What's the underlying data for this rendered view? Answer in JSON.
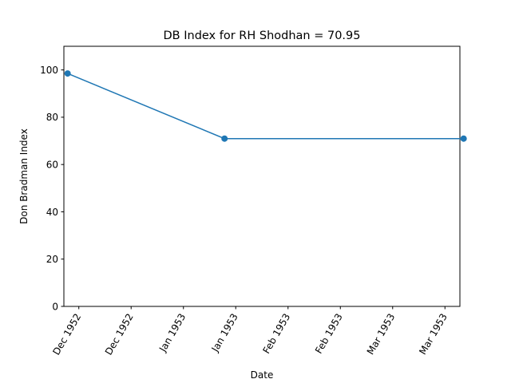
{
  "chart_data": {
    "type": "line",
    "title": "DB Index for RH Shodhan = 70.95",
    "xlabel": "Date",
    "ylabel": "Don Bradman Index",
    "ylim": [
      0,
      110
    ],
    "xlim": [
      "1952-12-11",
      "1953-03-27"
    ],
    "yticks": [
      0,
      20,
      40,
      60,
      80,
      100
    ],
    "xticks": [
      {
        "date": "1952-12-15",
        "label": "Dec 1952"
      },
      {
        "date": "1952-12-29",
        "label": "Dec 1952"
      },
      {
        "date": "1953-01-12",
        "label": "Jan 1953"
      },
      {
        "date": "1953-01-26",
        "label": "Jan 1953"
      },
      {
        "date": "1953-02-09",
        "label": "Feb 1953"
      },
      {
        "date": "1953-02-23",
        "label": "Feb 1953"
      },
      {
        "date": "1953-03-09",
        "label": "Mar 1953"
      },
      {
        "date": "1953-03-23",
        "label": "Mar 1953"
      }
    ],
    "series": [
      {
        "color": "#1f77b4",
        "points": [
          {
            "x": "1952-12-12",
            "y": 98.5
          },
          {
            "x": "1953-01-23",
            "y": 70.95
          },
          {
            "x": "1953-03-28",
            "y": 70.95
          }
        ]
      }
    ],
    "grid": false
  }
}
